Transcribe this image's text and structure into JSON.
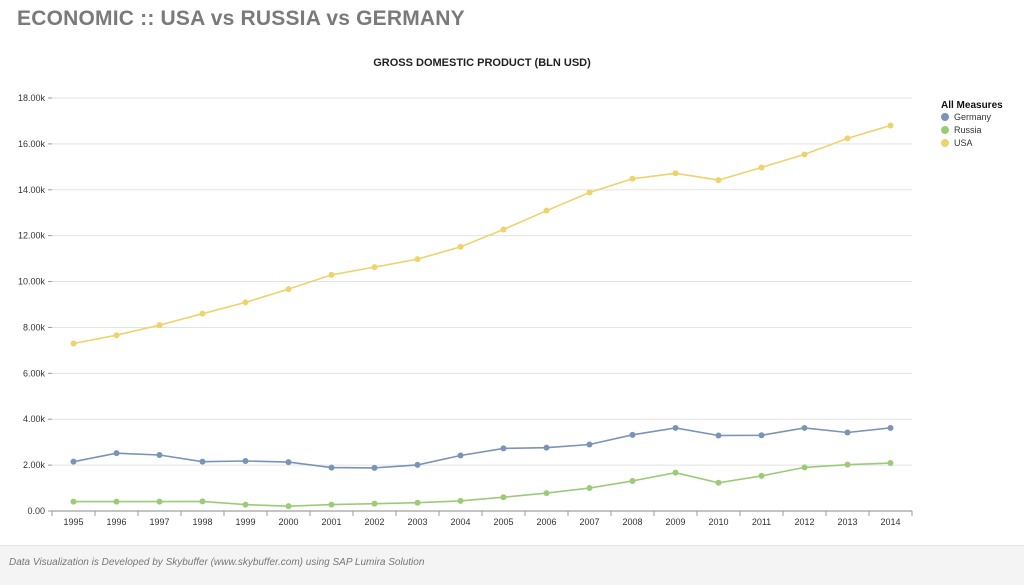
{
  "page": {
    "title": "ECONOMIC :: USA vs RUSSIA vs GERMANY",
    "footer": "Data Visualization is Developed by Skybuffer (www.skybuffer.com) using SAP Lumira Solution"
  },
  "chart_data": {
    "type": "line",
    "title": "GROSS DOMESTIC PRODUCT (BLN USD)",
    "xlabel": "",
    "ylabel": "",
    "x": [
      "1995",
      "1996",
      "1997",
      "1998",
      "1999",
      "2000",
      "2001",
      "2002",
      "2003",
      "2004",
      "2005",
      "2006",
      "2007",
      "2008",
      "2009",
      "2010",
      "2011",
      "2012",
      "2013",
      "2014"
    ],
    "ylim": [
      0,
      18000
    ],
    "yticks": [
      0,
      2000,
      4000,
      6000,
      8000,
      10000,
      12000,
      14000,
      16000,
      18000
    ],
    "ytick_labels": [
      "0.00",
      "2.00k",
      "4.00k",
      "6.00k",
      "8.00k",
      "10.00k",
      "12.00k",
      "14.00k",
      "16.00k",
      "18.00k"
    ],
    "grid": true,
    "legend": {
      "title": "All Measures",
      "position": "right"
    },
    "series": [
      {
        "name": "Germany",
        "color": "#7b93b8",
        "values": [
          2150,
          2520,
          2440,
          2150,
          2180,
          2130,
          1890,
          1880,
          2010,
          2420,
          2730,
          2760,
          2900,
          3320,
          3620,
          3290,
          3300,
          3620,
          3420,
          3620
        ]
      },
      {
        "name": "Russia",
        "color": "#9ccb78",
        "values": [
          410,
          410,
          410,
          420,
          280,
          210,
          280,
          320,
          360,
          440,
          600,
          780,
          1000,
          1310,
          1670,
          1230,
          1530,
          1900,
          2020,
          2090
        ]
      },
      {
        "name": "USA",
        "color": "#ecd36b",
        "values": [
          7300,
          7660,
          8100,
          8600,
          9090,
          9670,
          10290,
          10630,
          10980,
          11510,
          12270,
          13090,
          13880,
          14480,
          14720,
          14420,
          14970,
          15540,
          16240,
          16800
        ]
      }
    ]
  }
}
